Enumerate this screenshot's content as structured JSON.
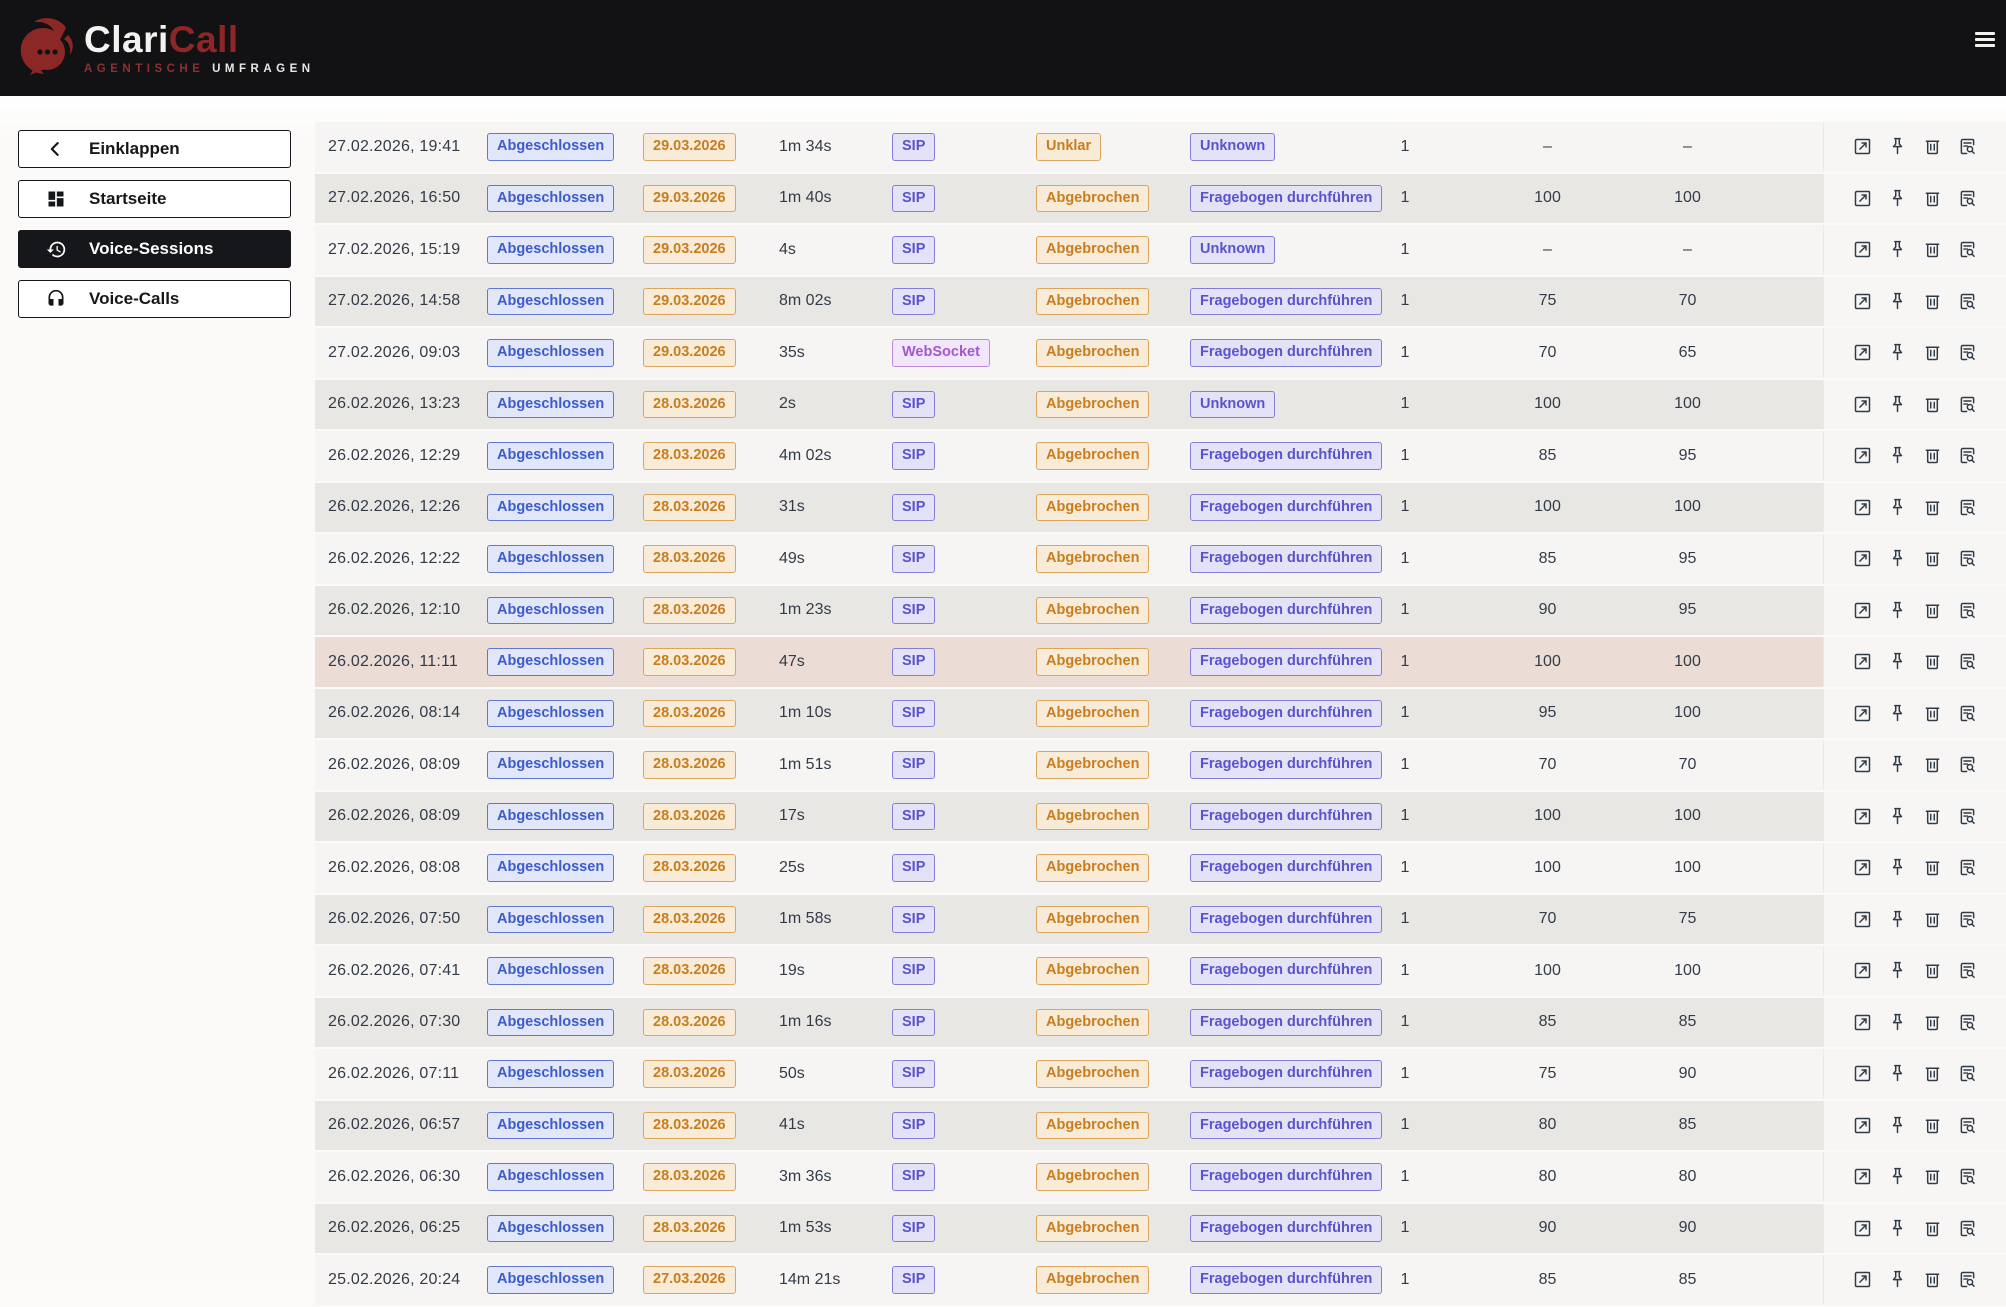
{
  "brand": {
    "name_primary": "Clari",
    "name_secondary": "Call",
    "tagline_primary": "AGENTISCHE",
    "tagline_secondary": "UMFRAGEN"
  },
  "sidebar": {
    "items": [
      {
        "label": "Einklappen",
        "icon": "chevron-left-icon",
        "active": false
      },
      {
        "label": "Startseite",
        "icon": "dashboard-icon",
        "active": false
      },
      {
        "label": "Voice-Sessions",
        "icon": "history-icon",
        "active": true
      },
      {
        "label": "Voice-Calls",
        "icon": "headset-icon",
        "active": false
      }
    ]
  },
  "colors": {
    "header_bg": "#121214",
    "brand_red": "#8e2527",
    "badge_blue": "#3c5ccc",
    "badge_orange": "#c87d1e",
    "badge_indigo": "#5953cd",
    "badge_violet": "#a158ce",
    "row_light": "#f6f5f3",
    "row_dark": "#e9e7e4",
    "row_highlight": "#ebdcd6"
  },
  "table": {
    "actions": [
      {
        "name": "open-session",
        "icon": "open-in-new-icon"
      },
      {
        "name": "pin-session",
        "icon": "pin-icon"
      },
      {
        "name": "delete-session",
        "icon": "trash-icon"
      },
      {
        "name": "view-transcript",
        "icon": "document-search-icon"
      }
    ],
    "rows": [
      {
        "datetime": "27.02.2026, 19:41",
        "status": "Abgeschlossen",
        "target_date": "29.03.2026",
        "duration": "1m 34s",
        "protocol": "SIP",
        "outcome": "Unklar",
        "survey": "Unknown",
        "attempts": "1",
        "score_1": "–",
        "score_2": "–",
        "highlighted": false
      },
      {
        "datetime": "27.02.2026, 16:50",
        "status": "Abgeschlossen",
        "target_date": "29.03.2026",
        "duration": "1m 40s",
        "protocol": "SIP",
        "outcome": "Abgebrochen",
        "survey": "Fragebogen durchführen",
        "attempts": "1",
        "score_1": "100",
        "score_2": "100",
        "highlighted": false
      },
      {
        "datetime": "27.02.2026, 15:19",
        "status": "Abgeschlossen",
        "target_date": "29.03.2026",
        "duration": "4s",
        "protocol": "SIP",
        "outcome": "Abgebrochen",
        "survey": "Unknown",
        "attempts": "1",
        "score_1": "–",
        "score_2": "–",
        "highlighted": false
      },
      {
        "datetime": "27.02.2026, 14:58",
        "status": "Abgeschlossen",
        "target_date": "29.03.2026",
        "duration": "8m 02s",
        "protocol": "SIP",
        "outcome": "Abgebrochen",
        "survey": "Fragebogen durchführen",
        "attempts": "1",
        "score_1": "75",
        "score_2": "70",
        "highlighted": false
      },
      {
        "datetime": "27.02.2026, 09:03",
        "status": "Abgeschlossen",
        "target_date": "29.03.2026",
        "duration": "35s",
        "protocol": "WebSocket",
        "outcome": "Abgebrochen",
        "survey": "Fragebogen durchführen",
        "attempts": "1",
        "score_1": "70",
        "score_2": "65",
        "highlighted": false
      },
      {
        "datetime": "26.02.2026, 13:23",
        "status": "Abgeschlossen",
        "target_date": "28.03.2026",
        "duration": "2s",
        "protocol": "SIP",
        "outcome": "Abgebrochen",
        "survey": "Unknown",
        "attempts": "1",
        "score_1": "100",
        "score_2": "100",
        "highlighted": false
      },
      {
        "datetime": "26.02.2026, 12:29",
        "status": "Abgeschlossen",
        "target_date": "28.03.2026",
        "duration": "4m 02s",
        "protocol": "SIP",
        "outcome": "Abgebrochen",
        "survey": "Fragebogen durchführen",
        "attempts": "1",
        "score_1": "85",
        "score_2": "95",
        "highlighted": false
      },
      {
        "datetime": "26.02.2026, 12:26",
        "status": "Abgeschlossen",
        "target_date": "28.03.2026",
        "duration": "31s",
        "protocol": "SIP",
        "outcome": "Abgebrochen",
        "survey": "Fragebogen durchführen",
        "attempts": "1",
        "score_1": "100",
        "score_2": "100",
        "highlighted": false
      },
      {
        "datetime": "26.02.2026, 12:22",
        "status": "Abgeschlossen",
        "target_date": "28.03.2026",
        "duration": "49s",
        "protocol": "SIP",
        "outcome": "Abgebrochen",
        "survey": "Fragebogen durchführen",
        "attempts": "1",
        "score_1": "85",
        "score_2": "95",
        "highlighted": false
      },
      {
        "datetime": "26.02.2026, 12:10",
        "status": "Abgeschlossen",
        "target_date": "28.03.2026",
        "duration": "1m 23s",
        "protocol": "SIP",
        "outcome": "Abgebrochen",
        "survey": "Fragebogen durchführen",
        "attempts": "1",
        "score_1": "90",
        "score_2": "95",
        "highlighted": false
      },
      {
        "datetime": "26.02.2026, 11:11",
        "status": "Abgeschlossen",
        "target_date": "28.03.2026",
        "duration": "47s",
        "protocol": "SIP",
        "outcome": "Abgebrochen",
        "survey": "Fragebogen durchführen",
        "attempts": "1",
        "score_1": "100",
        "score_2": "100",
        "highlighted": true
      },
      {
        "datetime": "26.02.2026, 08:14",
        "status": "Abgeschlossen",
        "target_date": "28.03.2026",
        "duration": "1m 10s",
        "protocol": "SIP",
        "outcome": "Abgebrochen",
        "survey": "Fragebogen durchführen",
        "attempts": "1",
        "score_1": "95",
        "score_2": "100",
        "highlighted": false
      },
      {
        "datetime": "26.02.2026, 08:09",
        "status": "Abgeschlossen",
        "target_date": "28.03.2026",
        "duration": "1m 51s",
        "protocol": "SIP",
        "outcome": "Abgebrochen",
        "survey": "Fragebogen durchführen",
        "attempts": "1",
        "score_1": "70",
        "score_2": "70",
        "highlighted": false
      },
      {
        "datetime": "26.02.2026, 08:09",
        "status": "Abgeschlossen",
        "target_date": "28.03.2026",
        "duration": "17s",
        "protocol": "SIP",
        "outcome": "Abgebrochen",
        "survey": "Fragebogen durchführen",
        "attempts": "1",
        "score_1": "100",
        "score_2": "100",
        "highlighted": false
      },
      {
        "datetime": "26.02.2026, 08:08",
        "status": "Abgeschlossen",
        "target_date": "28.03.2026",
        "duration": "25s",
        "protocol": "SIP",
        "outcome": "Abgebrochen",
        "survey": "Fragebogen durchführen",
        "attempts": "1",
        "score_1": "100",
        "score_2": "100",
        "highlighted": false
      },
      {
        "datetime": "26.02.2026, 07:50",
        "status": "Abgeschlossen",
        "target_date": "28.03.2026",
        "duration": "1m 58s",
        "protocol": "SIP",
        "outcome": "Abgebrochen",
        "survey": "Fragebogen durchführen",
        "attempts": "1",
        "score_1": "70",
        "score_2": "75",
        "highlighted": false
      },
      {
        "datetime": "26.02.2026, 07:41",
        "status": "Abgeschlossen",
        "target_date": "28.03.2026",
        "duration": "19s",
        "protocol": "SIP",
        "outcome": "Abgebrochen",
        "survey": "Fragebogen durchführen",
        "attempts": "1",
        "score_1": "100",
        "score_2": "100",
        "highlighted": false
      },
      {
        "datetime": "26.02.2026, 07:30",
        "status": "Abgeschlossen",
        "target_date": "28.03.2026",
        "duration": "1m 16s",
        "protocol": "SIP",
        "outcome": "Abgebrochen",
        "survey": "Fragebogen durchführen",
        "attempts": "1",
        "score_1": "85",
        "score_2": "85",
        "highlighted": false
      },
      {
        "datetime": "26.02.2026, 07:11",
        "status": "Abgeschlossen",
        "target_date": "28.03.2026",
        "duration": "50s",
        "protocol": "SIP",
        "outcome": "Abgebrochen",
        "survey": "Fragebogen durchführen",
        "attempts": "1",
        "score_1": "75",
        "score_2": "90",
        "highlighted": false
      },
      {
        "datetime": "26.02.2026, 06:57",
        "status": "Abgeschlossen",
        "target_date": "28.03.2026",
        "duration": "41s",
        "protocol": "SIP",
        "outcome": "Abgebrochen",
        "survey": "Fragebogen durchführen",
        "attempts": "1",
        "score_1": "80",
        "score_2": "85",
        "highlighted": false
      },
      {
        "datetime": "26.02.2026, 06:30",
        "status": "Abgeschlossen",
        "target_date": "28.03.2026",
        "duration": "3m 36s",
        "protocol": "SIP",
        "outcome": "Abgebrochen",
        "survey": "Fragebogen durchführen",
        "attempts": "1",
        "score_1": "80",
        "score_2": "80",
        "highlighted": false
      },
      {
        "datetime": "26.02.2026, 06:25",
        "status": "Abgeschlossen",
        "target_date": "28.03.2026",
        "duration": "1m 53s",
        "protocol": "SIP",
        "outcome": "Abgebrochen",
        "survey": "Fragebogen durchführen",
        "attempts": "1",
        "score_1": "90",
        "score_2": "90",
        "highlighted": false
      },
      {
        "datetime": "25.02.2026, 20:24",
        "status": "Abgeschlossen",
        "target_date": "27.03.2026",
        "duration": "14m 21s",
        "protocol": "SIP",
        "outcome": "Abgebrochen",
        "survey": "Fragebogen durchführen",
        "attempts": "1",
        "score_1": "85",
        "score_2": "85",
        "highlighted": false
      }
    ]
  }
}
